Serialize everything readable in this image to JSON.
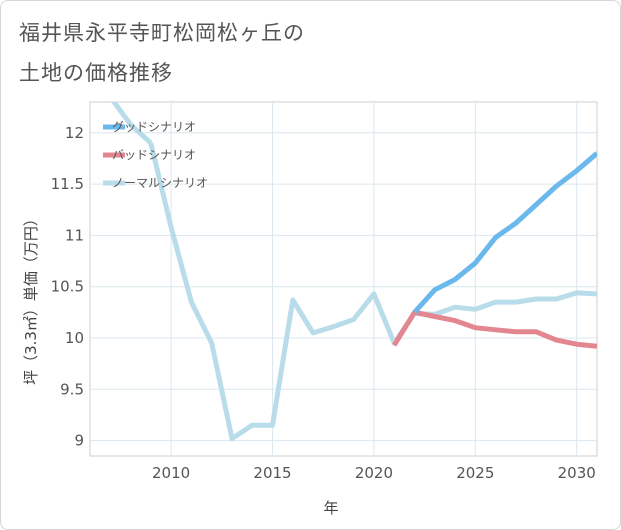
{
  "title_lines": [
    "福井県永平寺町松岡松ヶ丘の",
    "土地の価格推移"
  ],
  "chart_data": {
    "type": "line",
    "xlabel": "年",
    "ylabel": "坪（3.3㎡）単価（万円）",
    "xlim": [
      2006,
      2031
    ],
    "ylim": [
      8.85,
      12.3
    ],
    "x_ticks": [
      2010,
      2015,
      2020,
      2025,
      2030
    ],
    "y_ticks": [
      9,
      9.5,
      10,
      10.5,
      11,
      11.5,
      12
    ],
    "grid": true,
    "legend_position": "top-left",
    "series": [
      {
        "name": "グッドシナリオ",
        "color": "#6bb8ec",
        "x": [
          2022,
          2023,
          2024,
          2025,
          2026,
          2027,
          2028,
          2029,
          2030,
          2031
        ],
        "y": [
          10.25,
          10.47,
          10.57,
          10.73,
          10.98,
          11.12,
          11.3,
          11.48,
          11.63,
          11.8
        ]
      },
      {
        "name": "バッドシナリオ",
        "color": "#e3868f",
        "x": [
          2021,
          2022,
          2023,
          2024,
          2025,
          2026,
          2027,
          2028,
          2029,
          2030,
          2031
        ],
        "y": [
          9.93,
          10.25,
          10.21,
          10.17,
          10.1,
          10.08,
          10.06,
          10.06,
          9.98,
          9.94,
          9.92
        ]
      },
      {
        "name": "ノーマルシナリオ",
        "color": "#b9dcea",
        "x": [
          2009,
          2010,
          2011,
          2012,
          2013,
          2014,
          2015,
          2016,
          2017,
          2018,
          2019,
          2020,
          2021,
          2022,
          2023,
          2024,
          2025,
          2026,
          2027,
          2028,
          2029,
          2030,
          2031
        ],
        "y": [
          11.9,
          11.08,
          10.35,
          9.95,
          9.02,
          9.15,
          9.15,
          10.37,
          10.05,
          10.11,
          10.18,
          10.43,
          9.95,
          10.24,
          10.23,
          10.3,
          10.28,
          10.35,
          10.35,
          10.38,
          10.38,
          10.44,
          10.43
        ]
      },
      {
        "name": "",
        "color": "#b9dcea",
        "x": [
          2007,
          2008,
          2009
        ],
        "y": [
          12.35,
          12.08,
          11.9
        ]
      }
    ]
  }
}
